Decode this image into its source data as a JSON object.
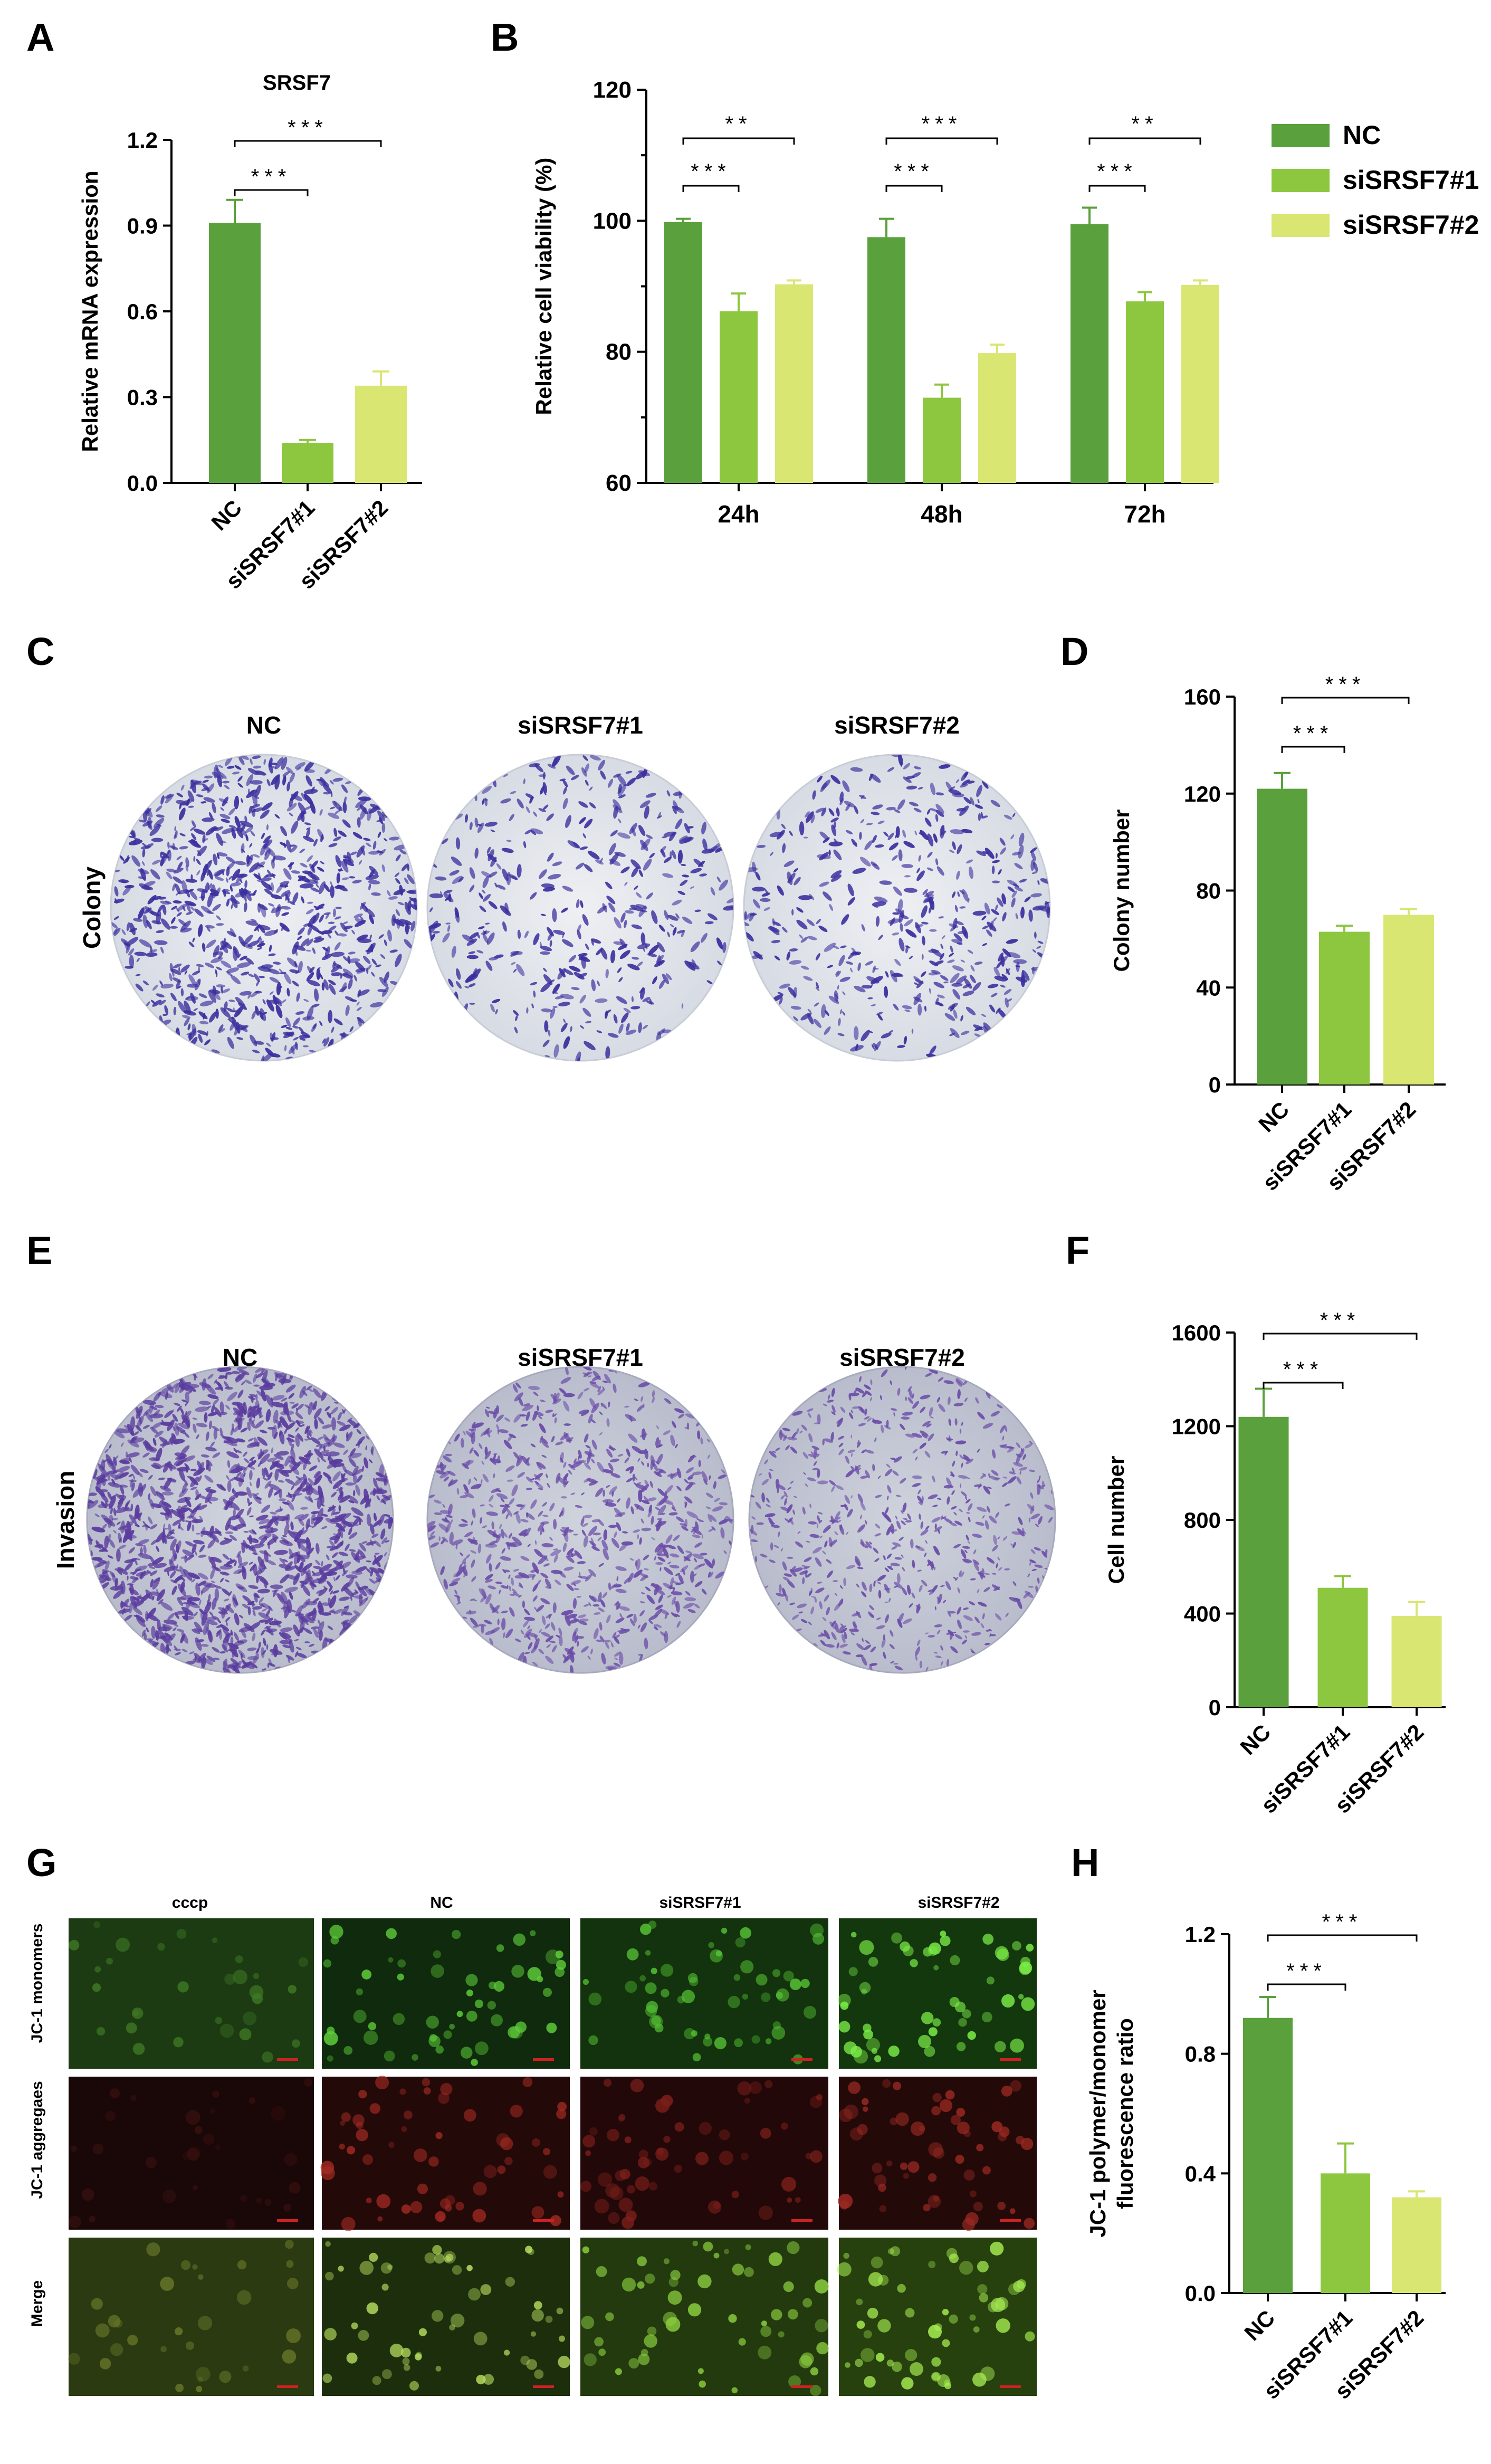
{
  "panels": {
    "A": "A",
    "B": "B",
    "C": "C",
    "D": "D",
    "E": "E",
    "F": "F",
    "G": "G",
    "H": "H"
  },
  "colors": {
    "nc": "#5aa03c",
    "si1": "#8dc63f",
    "si2": "#d9e672"
  },
  "legend": [
    {
      "label": "NC",
      "color": "#5aa03c"
    },
    {
      "label": "siSRSF7#1",
      "color": "#8dc63f"
    },
    {
      "label": "siSRSF7#2",
      "color": "#d9e672"
    }
  ],
  "plate_labels": {
    "colony": {
      "row": "Colony",
      "cols": [
        "NC",
        "siSRSF7#1",
        "siSRSF7#2"
      ]
    },
    "invasion": {
      "row": "Invasion",
      "cols": [
        "NC",
        "siSRSF7#1",
        "siSRSF7#2"
      ]
    }
  },
  "jc1_grid": {
    "cols": [
      "cccp",
      "NC",
      "siSRSF7#1",
      "siSRSF7#2"
    ],
    "rows": [
      "JC-1 monomers",
      "JC-1 aggregaes",
      "Merge"
    ]
  },
  "chart_data": [
    {
      "id": "A",
      "type": "bar",
      "title": "SRSF7",
      "xlabel": "",
      "ylabel": "Relative mRNA expression",
      "categories": [
        "NC",
        "siSRSF7#1",
        "siSRSF7#2"
      ],
      "values": [
        0.91,
        0.14,
        0.34
      ],
      "errors": [
        0.08,
        0.01,
        0.05
      ],
      "ylim": [
        0,
        1.2
      ],
      "yticks": [
        "0.0",
        "0.3",
        "0.6",
        "0.9",
        "1.2"
      ],
      "significance": [
        {
          "from": 0,
          "to": 1,
          "label": "***"
        },
        {
          "from": 0,
          "to": 2,
          "label": "***"
        }
      ]
    },
    {
      "id": "B",
      "type": "bar",
      "xlabel": "",
      "ylabel": "Relative cell viability (%)",
      "categories": [
        "24h",
        "48h",
        "72h"
      ],
      "series": [
        {
          "name": "NC",
          "values": [
            99.8,
            97.5,
            99.5
          ],
          "errors": [
            0.5,
            2.8,
            2.5
          ]
        },
        {
          "name": "siSRSF7#1",
          "values": [
            86.2,
            73.0,
            87.7
          ],
          "errors": [
            2.7,
            2.0,
            1.4
          ]
        },
        {
          "name": "siSRSF7#2",
          "values": [
            90.3,
            79.8,
            90.2
          ],
          "errors": [
            0.6,
            1.3,
            0.7
          ]
        }
      ],
      "ylim": [
        60,
        120
      ],
      "yticks": [
        "60",
        "80",
        "100",
        "120"
      ],
      "significance": [
        {
          "group": 0,
          "from": 0,
          "to": 1,
          "label": "***"
        },
        {
          "group": 0,
          "from": 0,
          "to": 2,
          "label": "**"
        },
        {
          "group": 1,
          "from": 0,
          "to": 1,
          "label": "***"
        },
        {
          "group": 1,
          "from": 0,
          "to": 2,
          "label": "***"
        },
        {
          "group": 2,
          "from": 0,
          "to": 1,
          "label": "***"
        },
        {
          "group": 2,
          "from": 0,
          "to": 2,
          "label": "**"
        }
      ]
    },
    {
      "id": "D",
      "type": "bar",
      "xlabel": "",
      "ylabel": "Colony number",
      "categories": [
        "NC",
        "siSRSF7#1",
        "siSRSF7#2"
      ],
      "values": [
        122,
        63,
        70
      ],
      "errors": [
        6.5,
        2.5,
        2.5
      ],
      "ylim": [
        0,
        160
      ],
      "yticks": [
        "0",
        "40",
        "80",
        "120",
        "160"
      ],
      "significance": [
        {
          "from": 0,
          "to": 1,
          "label": "***"
        },
        {
          "from": 0,
          "to": 2,
          "label": "***"
        }
      ]
    },
    {
      "id": "F",
      "type": "bar",
      "xlabel": "",
      "ylabel": "Cell  number",
      "categories": [
        "NC",
        "siSRSF7#1",
        "siSRSF7#2"
      ],
      "values": [
        1240,
        510,
        390
      ],
      "errors": [
        120,
        50,
        60
      ],
      "ylim": [
        0,
        1600
      ],
      "yticks": [
        "0",
        "400",
        "800",
        "1200",
        "1600"
      ],
      "significance": [
        {
          "from": 0,
          "to": 1,
          "label": "***"
        },
        {
          "from": 0,
          "to": 2,
          "label": "***"
        }
      ]
    },
    {
      "id": "H",
      "type": "bar",
      "xlabel": "",
      "ylabel": "JC-1 polymer/monomer fluorescence ratio",
      "ylabel_lines": [
        "JC-1 polymer/monomer",
        "fluorescence ratio"
      ],
      "categories": [
        "NC",
        "siSRSF7#1",
        "siSRSF7#2"
      ],
      "values": [
        0.92,
        0.4,
        0.32
      ],
      "errors": [
        0.07,
        0.1,
        0.02
      ],
      "ylim": [
        0,
        1.2
      ],
      "yticks": [
        "0.0",
        "0.4",
        "0.8",
        "1.2"
      ],
      "significance": [
        {
          "from": 0,
          "to": 1,
          "label": "***"
        },
        {
          "from": 0,
          "to": 2,
          "label": "***"
        }
      ]
    }
  ]
}
